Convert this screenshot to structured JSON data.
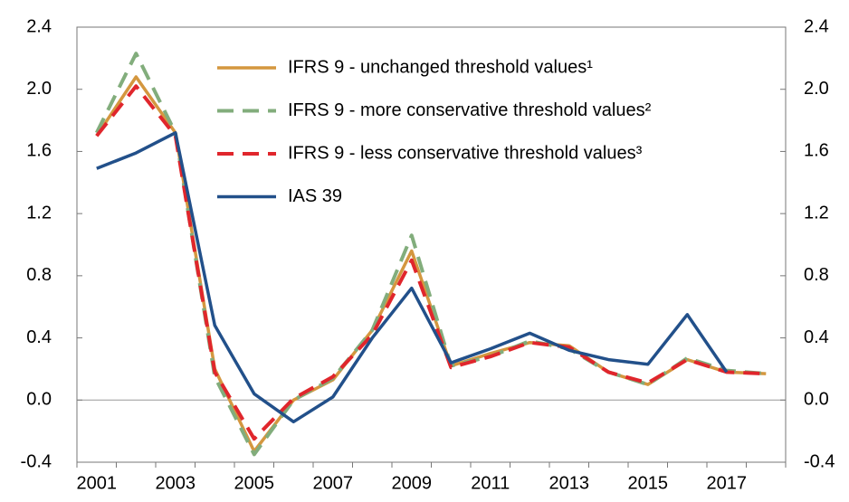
{
  "chart_data": {
    "type": "line",
    "categories": [
      "2001",
      null,
      "2003",
      null,
      "2005",
      null,
      "2007",
      null,
      "2009",
      null,
      "2011",
      null,
      "2013",
      null,
      "2015",
      null,
      "2017",
      null
    ],
    "series": [
      {
        "name": "IFRS 9 - unchanged threshold values¹",
        "color": "#d4973f",
        "dash": "solid",
        "values": [
          1.7,
          2.08,
          1.72,
          0.2,
          -0.33,
          0.0,
          0.13,
          0.45,
          0.96,
          0.22,
          0.3,
          0.37,
          0.35,
          0.18,
          0.1,
          0.26,
          0.18,
          0.17
        ]
      },
      {
        "name": "IFRS 9 - more conservative threshold values²",
        "color": "#82ad7c",
        "dash": "dashed",
        "values": [
          1.72,
          2.23,
          1.72,
          0.15,
          -0.35,
          0.0,
          0.14,
          0.45,
          1.06,
          0.22,
          0.28,
          0.38,
          0.33,
          0.18,
          0.1,
          0.27,
          0.19,
          0.17
        ]
      },
      {
        "name": "IFRS 9 - less conservative threshold values³",
        "color": "#e0262c",
        "dash": "dashed",
        "values": [
          1.7,
          2.02,
          1.7,
          0.18,
          -0.25,
          0.01,
          0.15,
          0.42,
          0.9,
          0.21,
          0.28,
          0.37,
          0.34,
          0.18,
          0.11,
          0.26,
          0.18,
          0.17
        ]
      },
      {
        "name": "IAS 39",
        "color": "#22508a",
        "dash": "solid",
        "values": [
          1.49,
          1.59,
          1.72,
          0.48,
          0.04,
          -0.14,
          0.02,
          0.4,
          0.72,
          0.24,
          0.33,
          0.43,
          0.32,
          0.26,
          0.23,
          0.55,
          0.18,
          null
        ]
      }
    ],
    "ylim": [
      -0.4,
      2.4
    ],
    "yticks": [
      -0.4,
      {
        "value": 0,
        "label": "0.0"
      },
      0.4,
      0.8,
      1.2,
      1.6,
      {
        "value": 2,
        "label": "2.0"
      },
      2.4
    ],
    "y2lim": [
      -0.4,
      2.4
    ],
    "y2ticks": [
      -0.4,
      {
        "value": 0,
        "label": "0.0"
      },
      0.4,
      0.8,
      1.2,
      1.6,
      {
        "value": 2,
        "label": "2.0"
      },
      2.4
    ],
    "legend": "top"
  }
}
